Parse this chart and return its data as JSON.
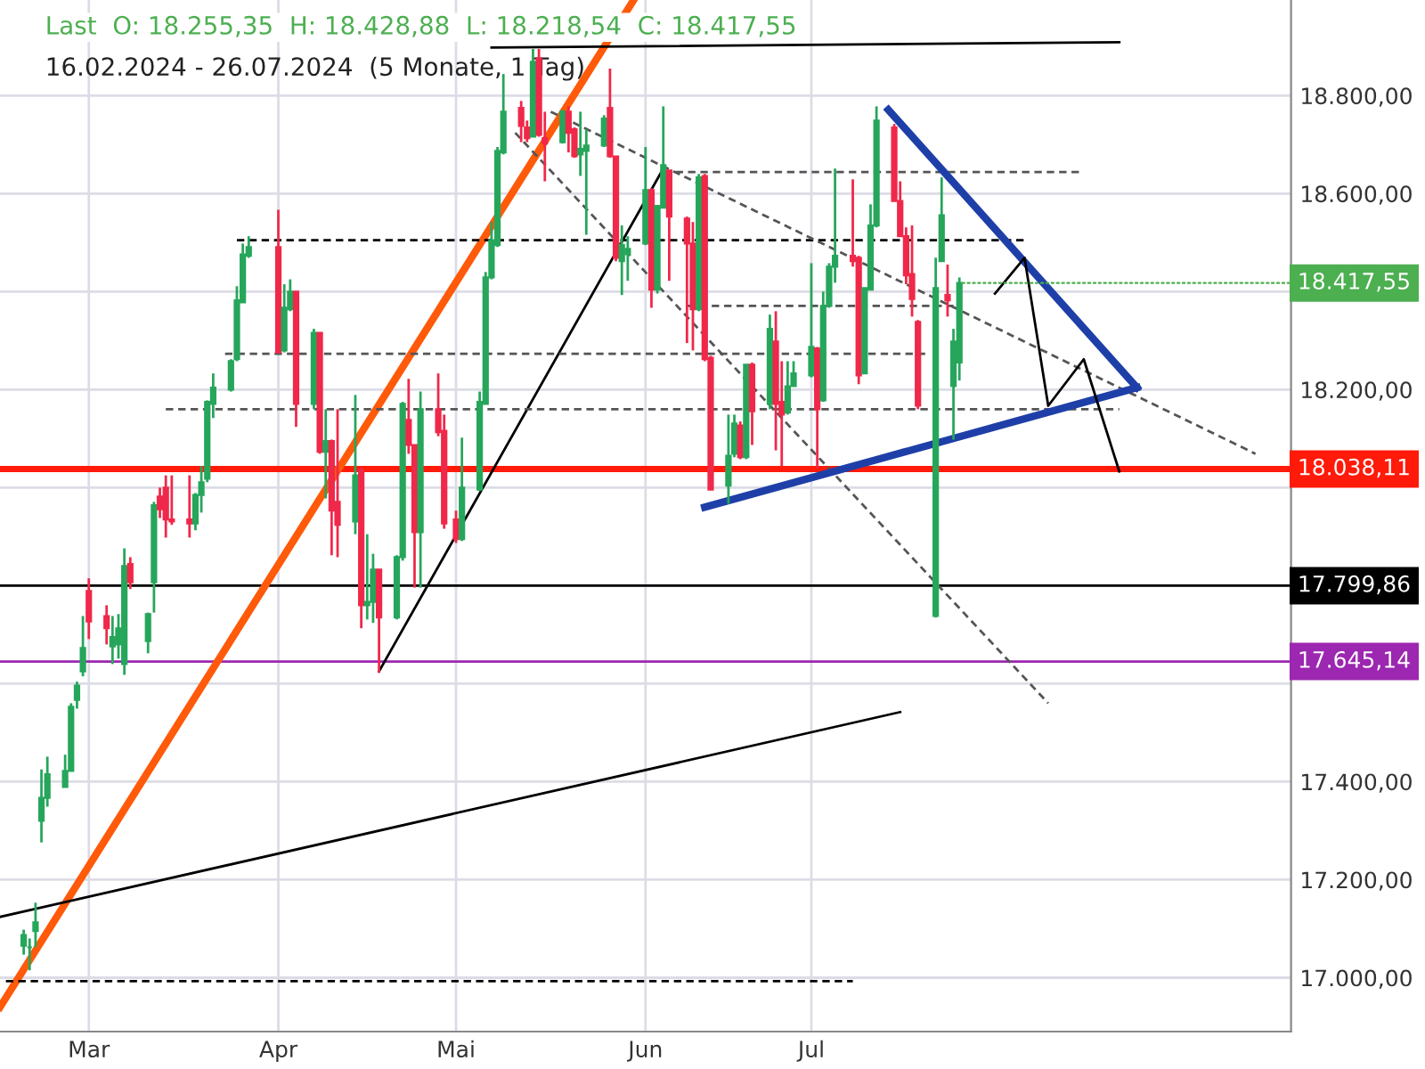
{
  "chart_data": {
    "type": "candlestick",
    "title": "Last  O: 18.255,35  H: 18.428,88  L: 18.218,54  C: 18.417,55",
    "subtitle": "16.02.2024 - 26.07.2024  (5 Monate, 1 Tag)",
    "x": [
      "2024-02-19",
      "2024-02-20",
      "2024-02-21",
      "2024-02-22",
      "2024-02-23",
      "2024-02-26",
      "2024-02-27",
      "2024-02-28",
      "2024-02-29",
      "2024-03-01",
      "2024-03-04",
      "2024-03-05",
      "2024-03-06",
      "2024-03-07",
      "2024-03-08",
      "2024-03-11",
      "2024-03-12",
      "2024-03-13",
      "2024-03-14",
      "2024-03-15",
      "2024-03-18",
      "2024-03-19",
      "2024-03-20",
      "2024-03-21",
      "2024-03-22",
      "2024-03-25",
      "2024-03-26",
      "2024-03-27",
      "2024-03-28",
      "2024-04-02",
      "2024-04-03",
      "2024-04-04",
      "2024-04-05",
      "2024-04-08",
      "2024-04-09",
      "2024-04-10",
      "2024-04-11",
      "2024-04-12",
      "2024-04-15",
      "2024-04-16",
      "2024-04-17",
      "2024-04-18",
      "2024-04-19",
      "2024-04-22",
      "2024-04-23",
      "2024-04-24",
      "2024-04-25",
      "2024-04-26",
      "2024-04-29",
      "2024-04-30",
      "2024-05-02",
      "2024-05-03",
      "2024-05-06",
      "2024-05-07",
      "2024-05-08",
      "2024-05-09",
      "2024-05-10",
      "2024-05-13",
      "2024-05-14",
      "2024-05-15",
      "2024-05-16",
      "2024-05-17",
      "2024-05-20",
      "2024-05-21",
      "2024-05-22",
      "2024-05-23",
      "2024-05-24",
      "2024-05-27",
      "2024-05-28",
      "2024-05-29",
      "2024-05-30",
      "2024-05-31",
      "2024-06-03",
      "2024-06-04",
      "2024-06-05",
      "2024-06-06",
      "2024-06-07",
      "2024-06-10",
      "2024-06-11",
      "2024-06-12",
      "2024-06-13",
      "2024-06-14",
      "2024-06-17",
      "2024-06-18",
      "2024-06-19",
      "2024-06-20",
      "2024-06-21",
      "2024-06-24",
      "2024-06-25",
      "2024-06-26",
      "2024-06-27",
      "2024-06-28",
      "2024-07-01",
      "2024-07-02",
      "2024-07-03",
      "2024-07-04",
      "2024-07-05",
      "2024-07-08",
      "2024-07-09",
      "2024-07-10",
      "2024-07-11",
      "2024-07-12",
      "2024-07-15",
      "2024-07-16",
      "2024-07-17",
      "2024-07-18",
      "2024-07-19",
      "2024-07-22",
      "2024-07-23",
      "2024-07-24",
      "2024-07-25",
      "2024-07-26"
    ],
    "ohlc": [
      [
        17065,
        17098,
        17047,
        17087
      ],
      [
        17062,
        17080,
        17015,
        17062
      ],
      [
        17095,
        17153,
        17062,
        17113
      ],
      [
        17320,
        17425,
        17276,
        17367
      ],
      [
        17367,
        17451,
        17349,
        17415
      ],
      [
        17389,
        17455,
        17389,
        17422
      ],
      [
        17422,
        17560,
        17422,
        17553
      ],
      [
        17567,
        17604,
        17549,
        17596
      ],
      [
        17625,
        17738,
        17615,
        17673
      ],
      [
        17789,
        17815,
        17691,
        17727
      ],
      [
        17738,
        17760,
        17680,
        17713
      ],
      [
        17676,
        17738,
        17640,
        17695
      ],
      [
        17680,
        17742,
        17651,
        17713
      ],
      [
        17640,
        17876,
        17618,
        17840
      ],
      [
        17844,
        17858,
        17793,
        17807
      ],
      [
        17687,
        17745,
        17662,
        17742
      ],
      [
        17807,
        17971,
        17745,
        17964
      ],
      [
        17982,
        18000,
        17938,
        17956
      ],
      [
        18000,
        18025,
        17898,
        17935
      ],
      [
        17935,
        18025,
        17924,
        17931
      ],
      [
        17935,
        18025,
        17898,
        17927
      ],
      [
        17927,
        17989,
        17913,
        17985
      ],
      [
        17985,
        18044,
        17949,
        18011
      ],
      [
        18018,
        18178,
        18011,
        18175
      ],
      [
        18171,
        18233,
        18142,
        18204
      ],
      [
        18200,
        18262,
        18196,
        18258
      ],
      [
        18262,
        18411,
        18258,
        18382
      ],
      [
        18378,
        18498,
        18378,
        18476
      ],
      [
        18473,
        18513,
        18469,
        18491
      ],
      [
        18491,
        18567,
        18276,
        18276
      ],
      [
        18280,
        18415,
        18276,
        18367
      ],
      [
        18364,
        18425,
        18360,
        18400
      ],
      [
        18400,
        18400,
        18124,
        18171
      ],
      [
        18171,
        18324,
        18160,
        18316
      ],
      [
        18316,
        18316,
        18069,
        18073
      ],
      [
        18073,
        18160,
        17978,
        18095
      ],
      [
        18095,
        18098,
        17862,
        17953
      ],
      [
        17971,
        18160,
        17858,
        17924
      ],
      [
        17931,
        18189,
        17905,
        18025
      ],
      [
        18036,
        18040,
        17713,
        17760
      ],
      [
        17760,
        17905,
        17731,
        17767
      ],
      [
        17767,
        17865,
        17724,
        17833
      ],
      [
        17833,
        17833,
        17622,
        17735
      ],
      [
        17735,
        17862,
        17731,
        17858
      ],
      [
        17858,
        18175,
        17851,
        18171
      ],
      [
        18138,
        18222,
        18069,
        18087
      ],
      [
        18087,
        18087,
        17796,
        17909
      ],
      [
        17909,
        18196,
        17796,
        18160
      ],
      [
        18160,
        18233,
        18105,
        18113
      ],
      [
        18116,
        18149,
        17916,
        17927
      ],
      [
        17935,
        17953,
        17887,
        17895
      ],
      [
        17895,
        18102,
        17891,
        18000
      ],
      [
        17996,
        18196,
        17993,
        18175
      ],
      [
        18171,
        18440,
        18171,
        18429
      ],
      [
        18429,
        18542,
        18425,
        18505
      ],
      [
        18495,
        18695,
        18491,
        18687
      ],
      [
        18684,
        18844,
        18680,
        18767
      ],
      [
        18775,
        18789,
        18705,
        18738
      ],
      [
        18735,
        18749,
        18705,
        18713
      ],
      [
        18716,
        18895,
        18716,
        18869
      ],
      [
        18876,
        18895,
        18716,
        18720
      ],
      [
        18713,
        18767,
        18625,
        18702
      ],
      [
        18705,
        18771,
        18702,
        18767
      ],
      [
        18767,
        18778,
        18684,
        18724
      ],
      [
        18731,
        18735,
        18673,
        18676
      ],
      [
        18680,
        18767,
        18636,
        18691
      ],
      [
        18687,
        18731,
        18516,
        18698
      ],
      [
        18698,
        18760,
        18695,
        18753
      ],
      [
        18775,
        18855,
        18673,
        18676
      ],
      [
        18676,
        18676,
        18462,
        18469
      ],
      [
        18462,
        18535,
        18393,
        18495
      ],
      [
        18476,
        18513,
        18422,
        18487
      ],
      [
        18498,
        18695,
        18495,
        18607
      ],
      [
        18607,
        18611,
        18367,
        18404
      ],
      [
        18404,
        18575,
        18396,
        18575
      ],
      [
        18571,
        18778,
        18571,
        18658
      ],
      [
        18647,
        18647,
        18422,
        18553
      ],
      [
        18549,
        18553,
        18295,
        18498
      ],
      [
        18498,
        18542,
        18280,
        18364
      ],
      [
        18364,
        18640,
        18360,
        18633
      ],
      [
        18636,
        18640,
        18258,
        18262
      ],
      [
        18265,
        18269,
        17996,
        17996
      ],
      [
        18004,
        18149,
        17967,
        18065
      ],
      [
        18069,
        18149,
        18062,
        18131
      ],
      [
        18127,
        18135,
        18058,
        18062
      ],
      [
        18062,
        18251,
        18058,
        18251
      ],
      [
        18251,
        18255,
        18087,
        18156
      ],
      [
        18171,
        18353,
        18160,
        18324
      ],
      [
        18298,
        18360,
        18076,
        18171
      ],
      [
        18175,
        18258,
        18044,
        18149
      ],
      [
        18153,
        18258,
        18149,
        18207
      ],
      [
        18207,
        18258,
        18207,
        18233
      ],
      [
        18229,
        18458,
        18225,
        18287
      ],
      [
        18284,
        18287,
        18040,
        18160
      ],
      [
        18178,
        18400,
        18175,
        18371
      ],
      [
        18371,
        18458,
        18367,
        18451
      ],
      [
        18451,
        18651,
        18418,
        18473
      ],
      [
        18473,
        18629,
        18451,
        18462
      ],
      [
        18469,
        18473,
        18211,
        18229
      ],
      [
        18233,
        18407,
        18233,
        18407
      ],
      [
        18404,
        18578,
        18404,
        18535
      ],
      [
        18535,
        18778,
        18531,
        18749
      ],
      [
        18735,
        18742,
        18585,
        18585
      ],
      [
        18585,
        18625,
        18513,
        18513
      ],
      [
        18513,
        18531,
        18415,
        18433
      ],
      [
        18436,
        18535,
        18349,
        18385
      ],
      [
        18338,
        18342,
        18160,
        18167
      ],
      [
        17738,
        18469,
        17735,
        18407
      ],
      [
        18462,
        18633,
        18462,
        18556
      ],
      [
        18393,
        18455,
        18349,
        18382
      ],
      [
        18207,
        18324,
        18098,
        18298
      ],
      [
        18255.35,
        18428.88,
        18218.54,
        18417.55
      ]
    ],
    "colors": [
      "#26a65b",
      "#26a65b",
      "#26a65b",
      "#26a65b",
      "#26a65b",
      "#26a65b",
      "#26a65b",
      "#26a65b",
      "#26a65b",
      "#f0284a",
      "#f0284a",
      "#26a65b",
      "#26a65b",
      "#26a65b",
      "#f0284a",
      "#26a65b",
      "#26a65b",
      "#f0284a",
      "#f0284a",
      "#f0284a",
      "#f0284a",
      "#26a65b",
      "#26a65b",
      "#26a65b",
      "#26a65b",
      "#26a65b",
      "#26a65b",
      "#26a65b",
      "#26a65b",
      "#f0284a",
      "#26a65b",
      "#26a65b",
      "#f0284a",
      "#26a65b",
      "#f0284a",
      "#26a65b",
      "#f0284a",
      "#f0284a",
      "#26a65b",
      "#f0284a",
      "#26a65b",
      "#26a65b",
      "#f0284a",
      "#26a65b",
      "#26a65b",
      "#f0284a",
      "#f0284a",
      "#26a65b",
      "#f0284a",
      "#f0284a",
      "#f0284a",
      "#26a65b",
      "#26a65b",
      "#26a65b",
      "#26a65b",
      "#26a65b",
      "#26a65b",
      "#f0284a",
      "#f0284a",
      "#26a65b",
      "#f0284a",
      "#f0284a",
      "#26a65b",
      "#f0284a",
      "#f0284a",
      "#26a65b",
      "#26a65b",
      "#26a65b",
      "#f0284a",
      "#f0284a",
      "#26a65b",
      "#26a65b",
      "#26a65b",
      "#f0284a",
      "#26a65b",
      "#26a65b",
      "#f0284a",
      "#f0284a",
      "#f0284a",
      "#26a65b",
      "#f0284a",
      "#f0284a",
      "#26a65b",
      "#26a65b",
      "#f0284a",
      "#26a65b",
      "#f0284a",
      "#26a65b",
      "#f0284a",
      "#f0284a",
      "#26a65b",
      "#26a65b",
      "#26a65b",
      "#f0284a",
      "#26a65b",
      "#26a65b",
      "#26a65b",
      "#f0284a",
      "#f0284a",
      "#26a65b",
      "#26a65b",
      "#26a65b",
      "#f0284a",
      "#f0284a",
      "#f0284a",
      "#f0284a",
      "#f0284a",
      "#26a65b",
      "#26a65b",
      "#f0284a",
      "#26a65b",
      "#26a65b"
    ],
    "series": [
      {
        "type": "line",
        "x": [
          "2024-02-15",
          "2024-06-01"
        ],
        "values": [
          16940,
          18995
        ],
        "color": "#ff5a0a",
        "line_style": "solid"
      },
      {
        "type": "line",
        "x": [
          "2024-05-08",
          "2024-08-22"
        ],
        "values": [
          18898,
          18909
        ],
        "color": "#000000",
        "line_style": "solid"
      },
      {
        "type": "line",
        "x": [
          "2024-04-19",
          "2024-06-06"
        ],
        "values": [
          17625,
          18651
        ],
        "color": "#000000",
        "line_style": "solid"
      },
      {
        "type": "line",
        "x": [
          "2024-02-15",
          "2024-07-16"
        ],
        "values": [
          17124,
          17542
        ],
        "color": "#000000",
        "line_style": "solid"
      },
      {
        "type": "line",
        "x": [
          "2024-02-16",
          "2024-07-08"
        ],
        "values": [
          16993,
          16993
        ],
        "color": "#000000",
        "line_style": "dashed"
      },
      {
        "type": "line",
        "x": [
          "2024-03-26",
          "2024-08-06"
        ],
        "values": [
          18505,
          18505
        ],
        "color": "#000000",
        "line_style": "dashed"
      },
      {
        "type": "line",
        "x": [
          "2024-06-06",
          "2024-08-16"
        ],
        "values": [
          18644,
          18644
        ],
        "color": "#555555",
        "line_style": "dashed"
      },
      {
        "type": "line",
        "x": [
          "2024-06-10",
          "2024-07-25"
        ],
        "values": [
          18371,
          18371
        ],
        "color": "#555555",
        "line_style": "dashed"
      },
      {
        "type": "line",
        "x": [
          "2024-03-24",
          "2024-07-21"
        ],
        "values": [
          18273,
          18273
        ],
        "color": "#555555",
        "line_style": "dashed"
      },
      {
        "type": "line",
        "x": [
          "2024-03-14",
          "2024-08-22"
        ],
        "values": [
          18160,
          18160
        ],
        "color": "#555555",
        "line_style": "dashed"
      },
      {
        "type": "line",
        "x": [
          "2024-05-18",
          "2024-09-14"
        ],
        "values": [
          18767,
          18069
        ],
        "color": "#555555",
        "line_style": "dashed"
      },
      {
        "type": "line",
        "x": [
          "2024-05-12",
          "2024-08-10"
        ],
        "values": [
          18724,
          17560
        ],
        "color": "#555555",
        "line_style": "dashed"
      },
      {
        "type": "line",
        "x": [
          "2024-07-14",
          "2024-08-25"
        ],
        "values": [
          18771,
          18204
        ],
        "color": "#1f3fa8",
        "line_style": "solid"
      },
      {
        "type": "line",
        "x": [
          "2024-06-13",
          "2024-08-25"
        ],
        "values": [
          17960,
          18204
        ],
        "color": "#1f3fa8",
        "line_style": "solid"
      },
      {
        "type": "line",
        "x": [
          "2024-08-01",
          "2024-08-06",
          "2024-08-10",
          "2024-08-16",
          "2024-08-22"
        ],
        "values": [
          18396,
          18469,
          18167,
          18262,
          18033
        ],
        "color": "#000000",
        "line_style": "solid"
      }
    ],
    "ref_lines": [
      {
        "axis": "y",
        "value": 18038.11,
        "label": "18.038,11",
        "color": "#ff1a0a"
      },
      {
        "axis": "y",
        "value": 17799.86,
        "label": "17.799,86",
        "color": "#000000"
      },
      {
        "axis": "y",
        "value": 17645.14,
        "label": "17.645,14",
        "color": "#9c27b0"
      }
    ],
    "annotations": [
      {
        "text": "18.417,55",
        "x": "2024-07-26",
        "y": 18417.55
      }
    ],
    "xlim": [
      "2024-02-15",
      "2024-09-20"
    ],
    "ylim": [
      16890,
      18995
    ],
    "xticks": [
      {
        "value": "2024-03-01",
        "label": "Mar"
      },
      {
        "value": "2024-04-02",
        "label": "Apr"
      },
      {
        "value": "2024-05-02",
        "label": "Mai"
      },
      {
        "value": "2024-06-03",
        "label": "Jun"
      },
      {
        "value": "2024-07-01",
        "label": "Jul"
      }
    ],
    "yticks": [
      {
        "value": 17000,
        "label": "17.000,00"
      },
      {
        "value": 17200,
        "label": "17.200,00"
      },
      {
        "value": 17400,
        "label": "17.400,00"
      },
      {
        "value": 17600,
        "label": null
      },
      {
        "value": 17800,
        "label": null
      },
      {
        "value": 18000,
        "label": null
      },
      {
        "value": 18200,
        "label": "18.200,00"
      },
      {
        "value": 18400,
        "label": null
      },
      {
        "value": 18600,
        "label": "18.600,00"
      },
      {
        "value": 18800,
        "label": "18.800,00"
      }
    ],
    "grid": true
  }
}
